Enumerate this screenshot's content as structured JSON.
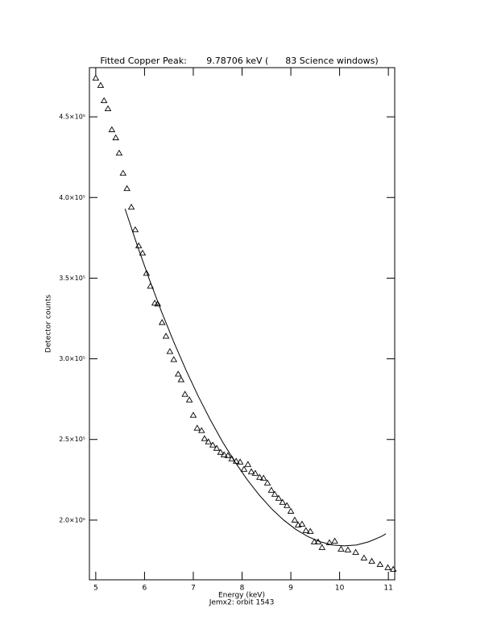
{
  "chart_data": {
    "type": "scatter",
    "title": "Fitted Copper Peak:       9.78706 keV (      83 Science windows)",
    "xlabel": "Energy (keV)",
    "xlabel2": "Jemx2: orbit 1543",
    "ylabel": "Detector counts",
    "xlim": [
      4.87,
      11.13
    ],
    "ylim": [
      163000,
      480500
    ],
    "xticks": [
      5,
      6,
      7,
      8,
      9,
      10,
      11
    ],
    "yticks": [
      {
        "value": 200000,
        "label": "2.0×10⁵"
      },
      {
        "value": 250000,
        "label": "2.5×10⁵"
      },
      {
        "value": 300000,
        "label": "3.0×10⁵"
      },
      {
        "value": 350000,
        "label": "3.5×10⁵"
      },
      {
        "value": 400000,
        "label": "4.0×10⁵"
      },
      {
        "value": 450000,
        "label": "4.5×10⁵"
      }
    ],
    "series": [
      {
        "marker": "triangle",
        "color": "#000000",
        "x": [
          5.0,
          5.1,
          5.17,
          5.25,
          5.33,
          5.41,
          5.48,
          5.56,
          5.64,
          5.73,
          5.81,
          5.88,
          5.96,
          6.04,
          6.12,
          6.21,
          6.27,
          6.36,
          6.44,
          6.52,
          6.6,
          6.69,
          6.75,
          6.83,
          6.92,
          7.0,
          7.08,
          7.17,
          7.23,
          7.31,
          7.4,
          7.48,
          7.56,
          7.63,
          7.71,
          7.79,
          7.88,
          7.96,
          8.04,
          8.12,
          8.19,
          8.27,
          8.36,
          8.44,
          8.52,
          8.6,
          8.67,
          8.75,
          8.83,
          8.92,
          9.0,
          9.08,
          9.15,
          9.23,
          9.31,
          9.4,
          9.48,
          9.56,
          9.64,
          9.79,
          9.9,
          10.03,
          10.17,
          10.33,
          10.5,
          10.66,
          10.83,
          10.99,
          11.1
        ],
        "values": [
          474000,
          469500,
          460000,
          455000,
          442000,
          437000,
          427500,
          415000,
          405500,
          394000,
          380000,
          370000,
          365500,
          353000,
          345000,
          334500,
          334000,
          322500,
          314000,
          304500,
          299500,
          290500,
          287000,
          278000,
          274500,
          265000,
          257000,
          255500,
          250500,
          248500,
          246500,
          244500,
          242000,
          240500,
          240000,
          238000,
          236500,
          236000,
          231500,
          234500,
          230000,
          229000,
          226500,
          226000,
          223000,
          218500,
          216000,
          213500,
          211000,
          209000,
          205500,
          200000,
          197000,
          197500,
          193500,
          193000,
          186500,
          186500,
          183000,
          186000,
          187000,
          182000,
          181500,
          180000,
          176500,
          174500,
          172500,
          170500,
          169500
        ]
      },
      {
        "style": "line",
        "color": "#000000",
        "x": [
          5.6,
          5.85,
          6.1,
          6.35,
          6.6,
          6.85,
          7.1,
          7.35,
          7.6,
          7.85,
          8.1,
          8.35,
          8.6,
          8.85,
          9.1,
          9.35,
          9.6,
          9.85,
          10.1,
          10.35,
          10.6,
          10.85,
          10.95
        ],
        "values": [
          393000,
          370400,
          349100,
          329100,
          310400,
          293000,
          276900,
          262100,
          248500,
          236300,
          225300,
          215600,
          207200,
          200100,
          194300,
          189800,
          186600,
          184600,
          184000,
          184600,
          186600,
          189800,
          191500
        ]
      }
    ]
  }
}
